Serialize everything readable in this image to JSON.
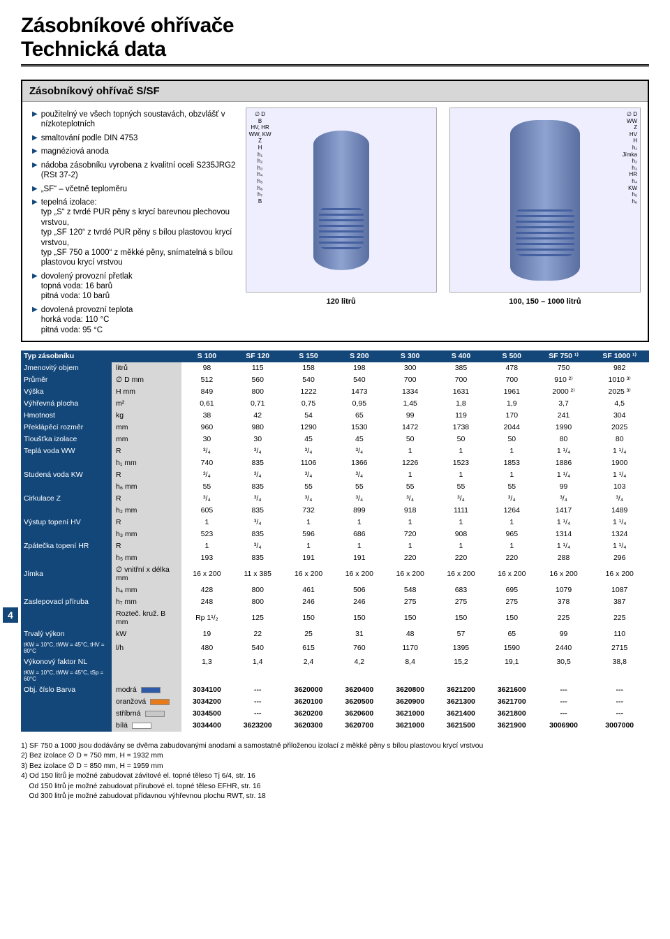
{
  "page_number": "4",
  "title_lines": [
    "Zásobníkové ohřívače",
    "Technická data"
  ],
  "section_title": "Zásobníkový ohřívač S/SF",
  "bullets": [
    "použitelný ve všech topných soustavách, obzvlášť v nízkoteplotních",
    "smaltování podle DIN 4753",
    "magnéziová anoda",
    "nádoba zásobníku vyrobena z kvalitní oceli S235JRG2 (RSt 37-2)",
    "„SF“ – včetně teploměru",
    "tepelná izolace:\ntyp „S“  z  tvrdé PUR pěny s  krycí barevnou plechovou vrstvou,\ntyp „SF 120“  z  tvrdé PUR pěny s  bílou plastovou krycí vrstvou,\ntyp „SF 750 a 1000“  z  měkké pěny, snímatelná s  bílou plastovou krycí vrstvou",
    "dovolený provozní přetlak\ntopná voda: 16 barů\npitná voda: 10 barů",
    "dovolená provozní teplota\nhorká voda: 110 °C\npitná voda: 95 °C"
  ],
  "diagram_caps": [
    "120 litrů",
    "100, 150 – 1000 litrů"
  ],
  "diagram_labels_left": [
    "∅ D",
    "B",
    "HV, HR",
    "WW, KW",
    "Z",
    "H",
    "h₁",
    "h₂",
    "h₃",
    "h₄",
    "h₅",
    "h₆",
    "h₇",
    "B"
  ],
  "diagram_labels_right": [
    "∅ D",
    "WW",
    "Z",
    "HV",
    "H",
    "h₁",
    "Jímka",
    "h₂",
    "h₃",
    "HR",
    "h₄",
    "KW",
    "h₅",
    "h₆"
  ],
  "table": {
    "header": [
      "Typ zásobníku",
      "",
      "S 100",
      "SF 120",
      "S 150",
      "S 200",
      "S 300",
      "S 400",
      "S 500",
      "SF 750 ¹⁾",
      "SF 1000 ¹⁾"
    ],
    "rows": [
      [
        "Jmenovitý objem",
        "litrů",
        "98",
        "115",
        "158",
        "198",
        "300",
        "385",
        "478",
        "750",
        "982"
      ],
      [
        "Průměr",
        "∅ D mm",
        "512",
        "560",
        "540",
        "540",
        "700",
        "700",
        "700",
        "910 ²⁾",
        "1010 ³⁾"
      ],
      [
        "Výška",
        "H mm",
        "849",
        "800",
        "1222",
        "1473",
        "1334",
        "1631",
        "1961",
        "2000 ²⁾",
        "2025 ³⁾"
      ],
      [
        "Výhřevná plocha",
        "m²",
        "0,61",
        "0,71",
        "0,75",
        "0,95",
        "1,45",
        "1,8",
        "1,9",
        "3,7",
        "4,5"
      ],
      [
        "Hmotnost",
        "kg",
        "38",
        "42",
        "54",
        "65",
        "99",
        "119",
        "170",
        "241",
        "304"
      ],
      [
        "Překlápěcí rozměr",
        "mm",
        "960",
        "980",
        "1290",
        "1530",
        "1472",
        "1738",
        "2044",
        "1990",
        "2025"
      ],
      [
        "Tloušťka izolace",
        "mm",
        "30",
        "30",
        "45",
        "45",
        "50",
        "50",
        "50",
        "80",
        "80"
      ],
      [
        "Teplá voda WW",
        "R",
        "³/₄",
        "³/₄",
        "³/₄",
        "³/₄",
        "1",
        "1",
        "1",
        "1 ¹/₄",
        "1 ¹/₄"
      ],
      [
        "",
        "h₁ mm",
        "740",
        "835",
        "1106",
        "1366",
        "1226",
        "1523",
        "1853",
        "1886",
        "1900"
      ],
      [
        "Studená voda KW",
        "R",
        "³/₄",
        "³/₄",
        "³/₄",
        "³/₄",
        "1",
        "1",
        "1",
        "1 ¹/₄",
        "1 ¹/₄"
      ],
      [
        "",
        "h₆ mm",
        "55",
        "835",
        "55",
        "55",
        "55",
        "55",
        "55",
        "99",
        "103"
      ],
      [
        "Cirkulace Z",
        "R",
        "³/₄",
        "³/₄",
        "³/₄",
        "³/₄",
        "³/₄",
        "³/₄",
        "³/₄",
        "³/₄",
        "³/₄"
      ],
      [
        "",
        "h₂ mm",
        "605",
        "835",
        "732",
        "899",
        "918",
        "1111",
        "1264",
        "1417",
        "1489"
      ],
      [
        "Výstup topení HV",
        "R",
        "1",
        "³/₄",
        "1",
        "1",
        "1",
        "1",
        "1",
        "1 ¹/₄",
        "1 ¹/₄"
      ],
      [
        "",
        "h₃ mm",
        "523",
        "835",
        "596",
        "686",
        "720",
        "908",
        "965",
        "1314",
        "1324"
      ],
      [
        "Zpátečka topení HR",
        "R",
        "1",
        "³/₄",
        "1",
        "1",
        "1",
        "1",
        "1",
        "1 ¹/₄",
        "1 ¹/₄"
      ],
      [
        "",
        "h₅ mm",
        "193",
        "835",
        "191",
        "191",
        "220",
        "220",
        "220",
        "288",
        "296"
      ],
      [
        "Jímka",
        "∅ vnitřní x délka mm",
        "16 x 200",
        "11 x 385",
        "16 x 200",
        "16 x 200",
        "16 x 200",
        "16 x 200",
        "16 x 200",
        "16 x 200",
        "16 x 200"
      ],
      [
        "",
        "h₄ mm",
        "428",
        "800",
        "461",
        "506",
        "548",
        "683",
        "695",
        "1079",
        "1087"
      ],
      [
        "Zaslepovací příruba",
        "h₇ mm",
        "248",
        "800",
        "246",
        "246",
        "275",
        "275",
        "275",
        "378",
        "387"
      ],
      [
        "",
        "Rozteč. kruž. B mm",
        "Rp 1¹/₂",
        "125",
        "150",
        "150",
        "150",
        "150",
        "150",
        "225",
        "225"
      ],
      [
        "Trvalý výkon",
        "kW",
        "19",
        "22",
        "25",
        "31",
        "48",
        "57",
        "65",
        "99",
        "110"
      ],
      [
        "tKW = 10°C, tWW = 45°C, tHV = 80°C",
        "l/h",
        "480",
        "540",
        "615",
        "760",
        "1170",
        "1395",
        "1590",
        "2440",
        "2715"
      ],
      [
        "Výkonový faktor NL",
        "",
        "1,3",
        "1,4",
        "2,4",
        "4,2",
        "8,4",
        "15,2",
        "19,1",
        "30,5",
        "38,8"
      ],
      [
        "tKW = 10°C, tWW = 45°C, tSp = 60°C",
        "",
        "",
        "",
        "",
        "",
        "",
        "",
        "",
        "",
        ""
      ]
    ],
    "color_rows": [
      {
        "label": "Obj. číslo   Barva",
        "color": "modrá",
        "swatch": "#2e5aa8",
        "vals": [
          "3034100",
          "---",
          "3620000",
          "3620400",
          "3620800",
          "3621200",
          "3621600",
          "---",
          "---"
        ]
      },
      {
        "label": "",
        "color": "oranžová",
        "swatch": "#e87a1a",
        "vals": [
          "3034200",
          "---",
          "3620100",
          "3620500",
          "3620900",
          "3621300",
          "3621700",
          "---",
          "---"
        ]
      },
      {
        "label": "",
        "color": "stříbrná",
        "swatch": "#c8c8c8",
        "vals": [
          "3034500",
          "---",
          "3620200",
          "3620600",
          "3621000",
          "3621400",
          "3621800",
          "---",
          "---"
        ]
      },
      {
        "label": "",
        "color": "bílá",
        "swatch": "#ffffff",
        "vals": [
          "3034400",
          "3623200",
          "3620300",
          "3620700",
          "3621000",
          "3621500",
          "3621900",
          "3006900",
          "3007000"
        ]
      }
    ]
  },
  "footnotes": [
    "1) SF 750 a 1000 jsou dodávány se dvěma zabudovanými anodami a samostatně přiloženou izolací z měkké pěny s bílou plastovou krycí vrstvou",
    "2) Bez izolace ∅  D = 750 mm, H = 1932 mm",
    "3) Bez izolace ∅  D = 850 mm, H = 1959 mm",
    "4) Od 150 litrů je možné zabudovat závitové el. topné těleso Tj 6/4, str. 16",
    "    Od 150 litrů je možné zabudovat přírubové el. topné těleso EFHR, str. 16",
    "    Od 300 litrů je možné zabudovat přídavnou výhřevnou plochu RWT, str. 18"
  ]
}
